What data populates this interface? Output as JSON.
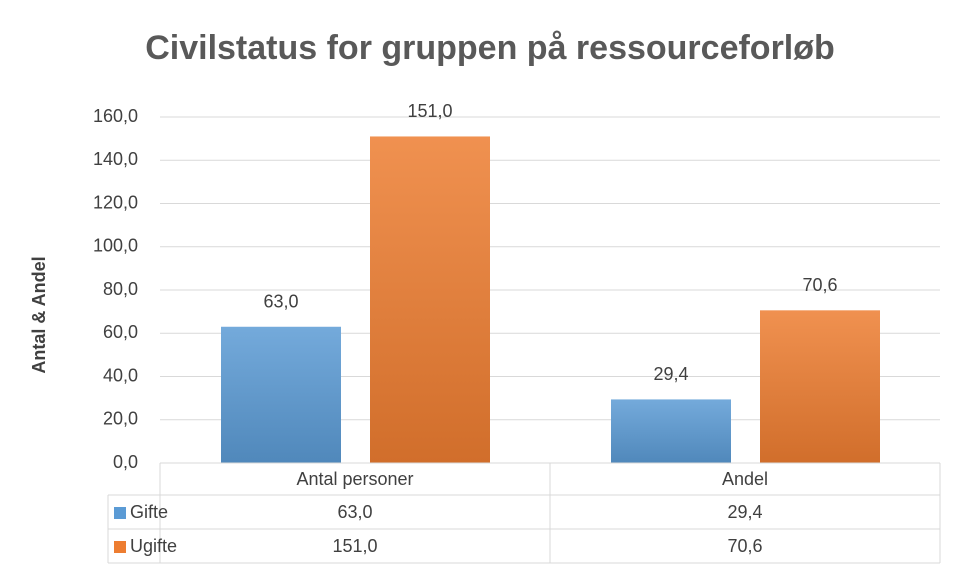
{
  "chart_data": {
    "type": "bar",
    "title": "Civilstatus for gruppen på ressourceforløb",
    "y_label": "Antal & Andel",
    "categories": [
      "Antal personer",
      "Andel"
    ],
    "series": [
      {
        "name": "Gifte",
        "color": "#5b9bd5",
        "values": [
          63.0,
          29.4
        ],
        "value_labels": [
          "63,0",
          "29,4"
        ]
      },
      {
        "name": "Ugifte",
        "color": "#ed7d31",
        "values": [
          151.0,
          70.6
        ],
        "value_labels": [
          "151,0",
          "70,6"
        ]
      }
    ],
    "ylim": [
      0,
      160
    ],
    "yticks": [
      {
        "value": 0,
        "label": "0,0"
      },
      {
        "value": 20,
        "label": "20,0"
      },
      {
        "value": 40,
        "label": "40,0"
      },
      {
        "value": 60,
        "label": "60,0"
      },
      {
        "value": 80,
        "label": "80,0"
      },
      {
        "value": 100,
        "label": "100,0"
      },
      {
        "value": 120,
        "label": "120,0"
      },
      {
        "value": 140,
        "label": "140,0"
      },
      {
        "value": 160,
        "label": "160,0"
      }
    ],
    "grid": true,
    "data_table": true
  }
}
